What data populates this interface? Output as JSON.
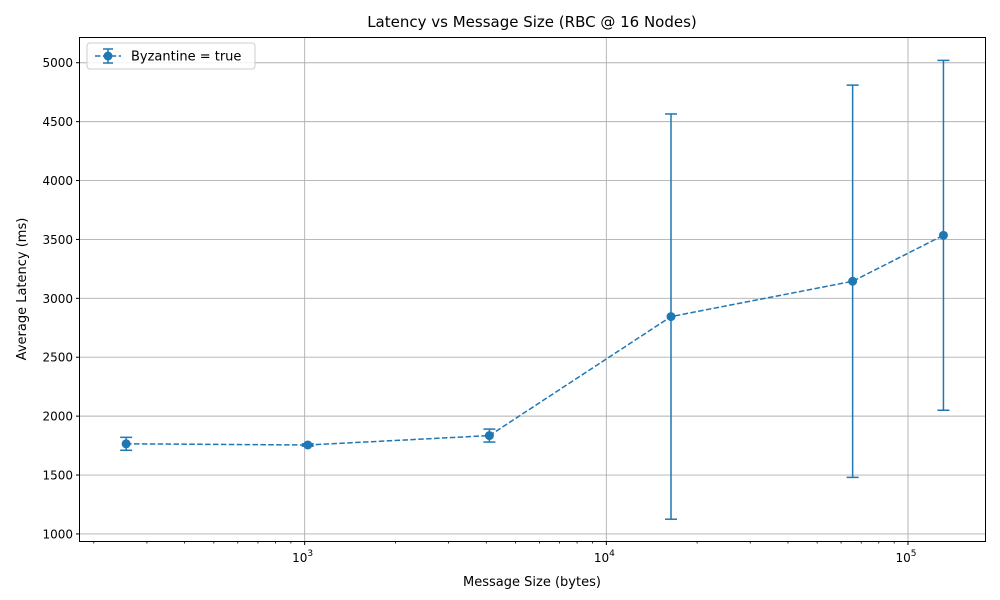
{
  "chart_data": {
    "type": "line",
    "title": "Latency vs Message Size (RBC @ 16 Nodes)",
    "xlabel": "Message Size (bytes)",
    "ylabel": "Average Latency (ms)",
    "xscale": "log",
    "xlim": [
      180,
      180000
    ],
    "ylim": [
      940,
      5210
    ],
    "grid": true,
    "legend_position": "top-left",
    "x_ticks": [
      {
        "value": 1000,
        "base": "10",
        "exp": "3"
      },
      {
        "value": 10000,
        "base": "10",
        "exp": "4"
      },
      {
        "value": 100000,
        "base": "10",
        "exp": "5"
      }
    ],
    "y_ticks": [
      1000,
      1500,
      2000,
      2500,
      3000,
      3500,
      4000,
      4500,
      5000
    ],
    "series": [
      {
        "name": "Byzantine = true",
        "color": "#1f77b4",
        "line_style": "dashed",
        "marker": "circle",
        "x": [
          256,
          1024,
          4096,
          16384,
          65536,
          131072
        ],
        "y": [
          1765,
          1755,
          1835,
          2845,
          3145,
          3535
        ],
        "yerr": [
          55,
          10,
          55,
          1720,
          1665,
          1485
        ]
      }
    ]
  }
}
